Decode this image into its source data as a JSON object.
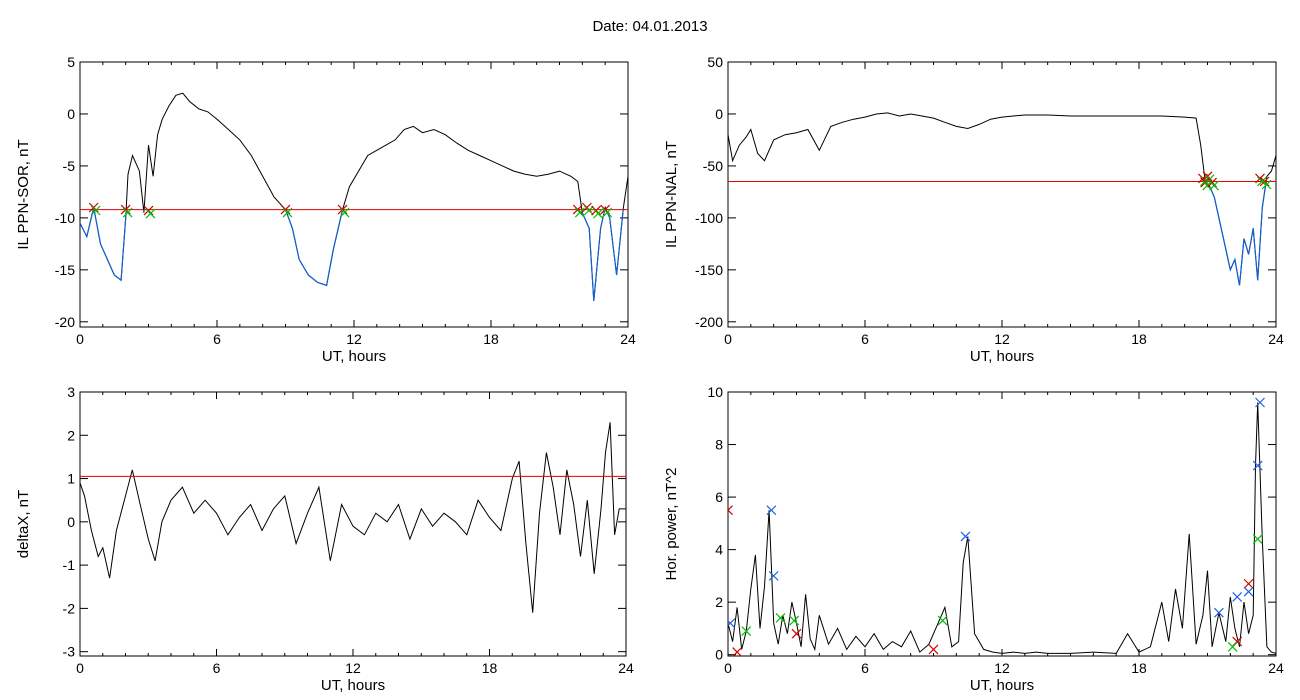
{
  "page": {
    "date_label": "Date:  04.01.2013"
  },
  "colors": {
    "trace": "#000000",
    "threshold_line": "#e00000",
    "below_threshold_trace": "#1060d0",
    "marker_red": "#d00000",
    "marker_green": "#00c000",
    "marker_blue": "#2060e0"
  },
  "chart_data": [
    {
      "type": "line",
      "xlabel": "UT, hours",
      "ylabel": "IL PPN-SOR, nT",
      "xlim": [
        0,
        24
      ],
      "ylim": [
        -20.5,
        5
      ],
      "xticks": [
        "0",
        "6",
        "12",
        "18",
        "24"
      ],
      "yticks": [
        "5",
        "0",
        "-5",
        "-10",
        "-15",
        "-20"
      ],
      "ytick_values": [
        5,
        0,
        -5,
        -10,
        -15,
        -20
      ],
      "threshold": -9.2,
      "series": [
        {
          "x": [
            0,
            0.3,
            0.6,
            0.9,
            1.2,
            1.5,
            1.8,
            2.0,
            2.1,
            2.3,
            2.6,
            2.8,
            3.0,
            3.2,
            3.4,
            3.6,
            3.9,
            4.2,
            4.5,
            4.8,
            5.2,
            5.6,
            6.0,
            6.5,
            7.0,
            7.5,
            8.0,
            8.5,
            9.0,
            9.3,
            9.6,
            10.0,
            10.4,
            10.8,
            11.1,
            11.5,
            11.8,
            12.2,
            12.6,
            13.0,
            13.4,
            13.8,
            14.2,
            14.6,
            15.0,
            15.5,
            16.0,
            16.5,
            17.0,
            17.5,
            18.0,
            18.5,
            19.0,
            19.5,
            20.0,
            20.5,
            21.0,
            21.5,
            21.8,
            22.0,
            22.3,
            22.5,
            22.8,
            23.0,
            23.2,
            23.5,
            23.8,
            24.0
          ],
          "values": [
            -10.5,
            -11.8,
            -9.0,
            -12.5,
            -14.0,
            -15.5,
            -16.0,
            -10.0,
            -5.8,
            -4.0,
            -5.5,
            -9.5,
            -3.0,
            -6.0,
            -2.0,
            -0.5,
            0.8,
            1.8,
            2.0,
            1.2,
            0.5,
            0.2,
            -0.5,
            -1.5,
            -2.5,
            -4.0,
            -6.0,
            -8.0,
            -9.2,
            -11.0,
            -14.0,
            -15.5,
            -16.2,
            -16.5,
            -13.0,
            -9.2,
            -7.0,
            -5.5,
            -4.0,
            -3.5,
            -3.0,
            -2.5,
            -1.5,
            -1.2,
            -1.8,
            -1.5,
            -2.0,
            -2.8,
            -3.5,
            -4.0,
            -4.5,
            -5.0,
            -5.5,
            -5.8,
            -6.0,
            -5.8,
            -5.5,
            -6.0,
            -6.5,
            -9.5,
            -11.0,
            -18.0,
            -11.0,
            -9.0,
            -10.0,
            -15.5,
            -9.0,
            -6.0
          ]
        }
      ],
      "markers": [
        {
          "x": 0.6,
          "y": -9.0
        },
        {
          "x": 2.0,
          "y": -9.2
        },
        {
          "x": 3.0,
          "y": -9.3
        },
        {
          "x": 9.0,
          "y": -9.2
        },
        {
          "x": 11.5,
          "y": -9.2
        },
        {
          "x": 21.8,
          "y": -9.2
        },
        {
          "x": 22.2,
          "y": -9.0
        },
        {
          "x": 22.6,
          "y": -9.3
        },
        {
          "x": 23.0,
          "y": -9.2
        }
      ]
    },
    {
      "type": "line",
      "xlabel": "UT, hours",
      "ylabel": "IL PPN-NAL, nT",
      "xlim": [
        0,
        24
      ],
      "ylim": [
        -205,
        50
      ],
      "xticks": [
        "0",
        "6",
        "12",
        "18",
        "24"
      ],
      "yticks": [
        "50",
        "0",
        "-50",
        "-100",
        "-150",
        "-200"
      ],
      "ytick_values": [
        50,
        0,
        -50,
        -100,
        -150,
        -200
      ],
      "threshold": -65,
      "series": [
        {
          "x": [
            0,
            0.2,
            0.5,
            0.8,
            1.0,
            1.3,
            1.6,
            2.0,
            2.5,
            3.0,
            3.5,
            4.0,
            4.5,
            5.0,
            5.5,
            6.0,
            6.5,
            7.0,
            7.5,
            8.0,
            8.5,
            9.0,
            9.5,
            10.0,
            10.5,
            11.0,
            11.5,
            12.0,
            12.5,
            13.0,
            14.0,
            15.0,
            16.0,
            17.0,
            18.0,
            19.0,
            20.0,
            20.5,
            20.7,
            20.9,
            21.1,
            21.3,
            21.5,
            21.8,
            22.0,
            22.2,
            22.4,
            22.6,
            22.8,
            23.0,
            23.2,
            23.4,
            23.6,
            23.8,
            24.0
          ],
          "values": [
            -20,
            -45,
            -30,
            -22,
            -15,
            -38,
            -45,
            -25,
            -20,
            -18,
            -15,
            -35,
            -12,
            -8,
            -5,
            -3,
            0,
            1,
            -2,
            0,
            -2,
            -4,
            -8,
            -12,
            -14,
            -10,
            -5,
            -3,
            -2,
            -1,
            -1,
            -2,
            -2,
            -2,
            -2,
            -2,
            -3,
            -4,
            -30,
            -65,
            -70,
            -80,
            -100,
            -130,
            -150,
            -140,
            -165,
            -120,
            -135,
            -110,
            -160,
            -90,
            -60,
            -55,
            -40
          ]
        }
      ],
      "markers": [
        {
          "x": 20.8,
          "y": -62
        },
        {
          "x": 20.9,
          "y": -66
        },
        {
          "x": 21.0,
          "y": -60
        },
        {
          "x": 21.2,
          "y": -66
        },
        {
          "x": 23.3,
          "y": -62
        },
        {
          "x": 23.5,
          "y": -65
        }
      ]
    },
    {
      "type": "line",
      "xlabel": "UT, hours",
      "ylabel": "deltaX, nT",
      "xlim": [
        0,
        24
      ],
      "ylim": [
        -3.1,
        3
      ],
      "xticks": [
        "0",
        "6",
        "12",
        "18",
        "24"
      ],
      "yticks": [
        "3",
        "2",
        "1",
        "0",
        "-1",
        "-2",
        "-3"
      ],
      "ytick_values": [
        3,
        2,
        1,
        0,
        -1,
        -2,
        -3
      ],
      "threshold": 1.05,
      "series": [
        {
          "x": [
            0,
            0.2,
            0.5,
            0.8,
            1.0,
            1.3,
            1.6,
            2.0,
            2.3,
            2.6,
            3.0,
            3.3,
            3.6,
            4.0,
            4.5,
            5.0,
            5.5,
            6.0,
            6.5,
            7.0,
            7.5,
            8.0,
            8.5,
            9.0,
            9.5,
            10.0,
            10.5,
            11.0,
            11.5,
            12.0,
            12.5,
            13.0,
            13.5,
            14.0,
            14.5,
            15.0,
            15.5,
            16.0,
            16.5,
            17.0,
            17.5,
            18.0,
            18.5,
            19.0,
            19.3,
            19.6,
            19.9,
            20.2,
            20.5,
            20.8,
            21.1,
            21.4,
            21.7,
            22.0,
            22.3,
            22.6,
            22.9,
            23.1,
            23.3,
            23.5,
            23.7,
            24.0
          ],
          "values": [
            0.9,
            0.6,
            -0.2,
            -0.8,
            -0.6,
            -1.3,
            -0.2,
            0.6,
            1.2,
            0.5,
            -0.4,
            -0.9,
            0.0,
            0.5,
            0.8,
            0.2,
            0.5,
            0.2,
            -0.3,
            0.1,
            0.4,
            -0.2,
            0.3,
            0.6,
            -0.5,
            0.2,
            0.8,
            -0.9,
            0.4,
            -0.1,
            -0.3,
            0.2,
            0.0,
            0.4,
            -0.4,
            0.3,
            -0.1,
            0.2,
            0.0,
            -0.3,
            0.5,
            0.1,
            -0.2,
            1.0,
            1.4,
            -0.5,
            -2.1,
            0.2,
            1.6,
            0.8,
            -0.3,
            1.2,
            0.4,
            -0.8,
            0.5,
            -1.2,
            0.3,
            1.6,
            2.3,
            -0.3,
            0.3,
            0.3
          ]
        }
      ],
      "markers": []
    },
    {
      "type": "line",
      "xlabel": "UT, hours",
      "ylabel": "Hor. power, nT^2",
      "xlim": [
        0,
        24
      ],
      "ylim": [
        -0.05,
        10
      ],
      "xticks": [
        "0",
        "6",
        "12",
        "18",
        "24"
      ],
      "yticks": [
        "10",
        "8",
        "6",
        "4",
        "2",
        "0"
      ],
      "ytick_values": [
        10,
        8,
        6,
        4,
        2,
        0
      ],
      "series": [
        {
          "x": [
            0,
            0.2,
            0.4,
            0.6,
            0.8,
            1.0,
            1.2,
            1.4,
            1.6,
            1.8,
            2.0,
            2.2,
            2.4,
            2.6,
            2.8,
            3.0,
            3.2,
            3.4,
            3.6,
            3.8,
            4.0,
            4.4,
            4.8,
            5.2,
            5.6,
            6.0,
            6.4,
            6.8,
            7.2,
            7.6,
            8.0,
            8.4,
            8.8,
            9.2,
            9.5,
            9.8,
            10.1,
            10.3,
            10.5,
            10.8,
            11.2,
            11.6,
            12.0,
            12.5,
            13.0,
            13.5,
            14.0,
            15.0,
            16.0,
            17.0,
            17.5,
            18.0,
            18.5,
            19.0,
            19.3,
            19.6,
            19.9,
            20.2,
            20.5,
            20.8,
            21.0,
            21.2,
            21.5,
            21.8,
            22.0,
            22.2,
            22.4,
            22.6,
            22.8,
            23.0,
            23.1,
            23.2,
            23.4,
            23.6,
            23.8,
            24.0
          ],
          "values": [
            1.2,
            0.5,
            1.8,
            0.2,
            0.9,
            2.5,
            3.8,
            1.0,
            2.6,
            5.5,
            1.2,
            0.4,
            1.5,
            0.8,
            2.0,
            1.2,
            0.3,
            2.3,
            0.6,
            0.2,
            1.5,
            0.4,
            1.0,
            0.2,
            0.7,
            0.3,
            0.8,
            0.2,
            0.5,
            0.3,
            0.9,
            0.1,
            0.4,
            1.2,
            1.8,
            0.3,
            0.5,
            3.5,
            4.5,
            0.8,
            0.2,
            0.1,
            0.05,
            0.1,
            0.05,
            0.1,
            0.05,
            0.05,
            0.1,
            0.05,
            0.8,
            0.1,
            0.3,
            2.0,
            0.5,
            2.5,
            1.0,
            4.6,
            0.4,
            1.5,
            3.2,
            0.3,
            1.6,
            0.5,
            2.2,
            1.0,
            0.3,
            2.0,
            0.8,
            1.5,
            7.2,
            9.6,
            4.4,
            0.3,
            0.1,
            0.05
          ]
        }
      ],
      "markers_red": [
        {
          "x": 0.0,
          "y": 5.5
        },
        {
          "x": 0.4,
          "y": 0.1
        },
        {
          "x": 3.0,
          "y": 0.8
        },
        {
          "x": 9.0,
          "y": 0.2
        },
        {
          "x": 22.3,
          "y": 0.5
        },
        {
          "x": 22.8,
          "y": 2.7
        }
      ],
      "markers_green": [
        {
          "x": 0.8,
          "y": 0.9
        },
        {
          "x": 2.3,
          "y": 1.4
        },
        {
          "x": 2.9,
          "y": 1.3
        },
        {
          "x": 9.4,
          "y": 1.3
        },
        {
          "x": 22.1,
          "y": 0.3
        },
        {
          "x": 23.2,
          "y": 4.4
        }
      ],
      "markers_blue": [
        {
          "x": 0.1,
          "y": 1.2
        },
        {
          "x": 1.9,
          "y": 5.5
        },
        {
          "x": 2.0,
          "y": 3.0
        },
        {
          "x": 10.4,
          "y": 4.5
        },
        {
          "x": 21.5,
          "y": 1.6
        },
        {
          "x": 22.3,
          "y": 2.2
        },
        {
          "x": 22.8,
          "y": 2.4
        },
        {
          "x": 23.2,
          "y": 7.2
        },
        {
          "x": 23.3,
          "y": 9.6
        }
      ]
    }
  ]
}
